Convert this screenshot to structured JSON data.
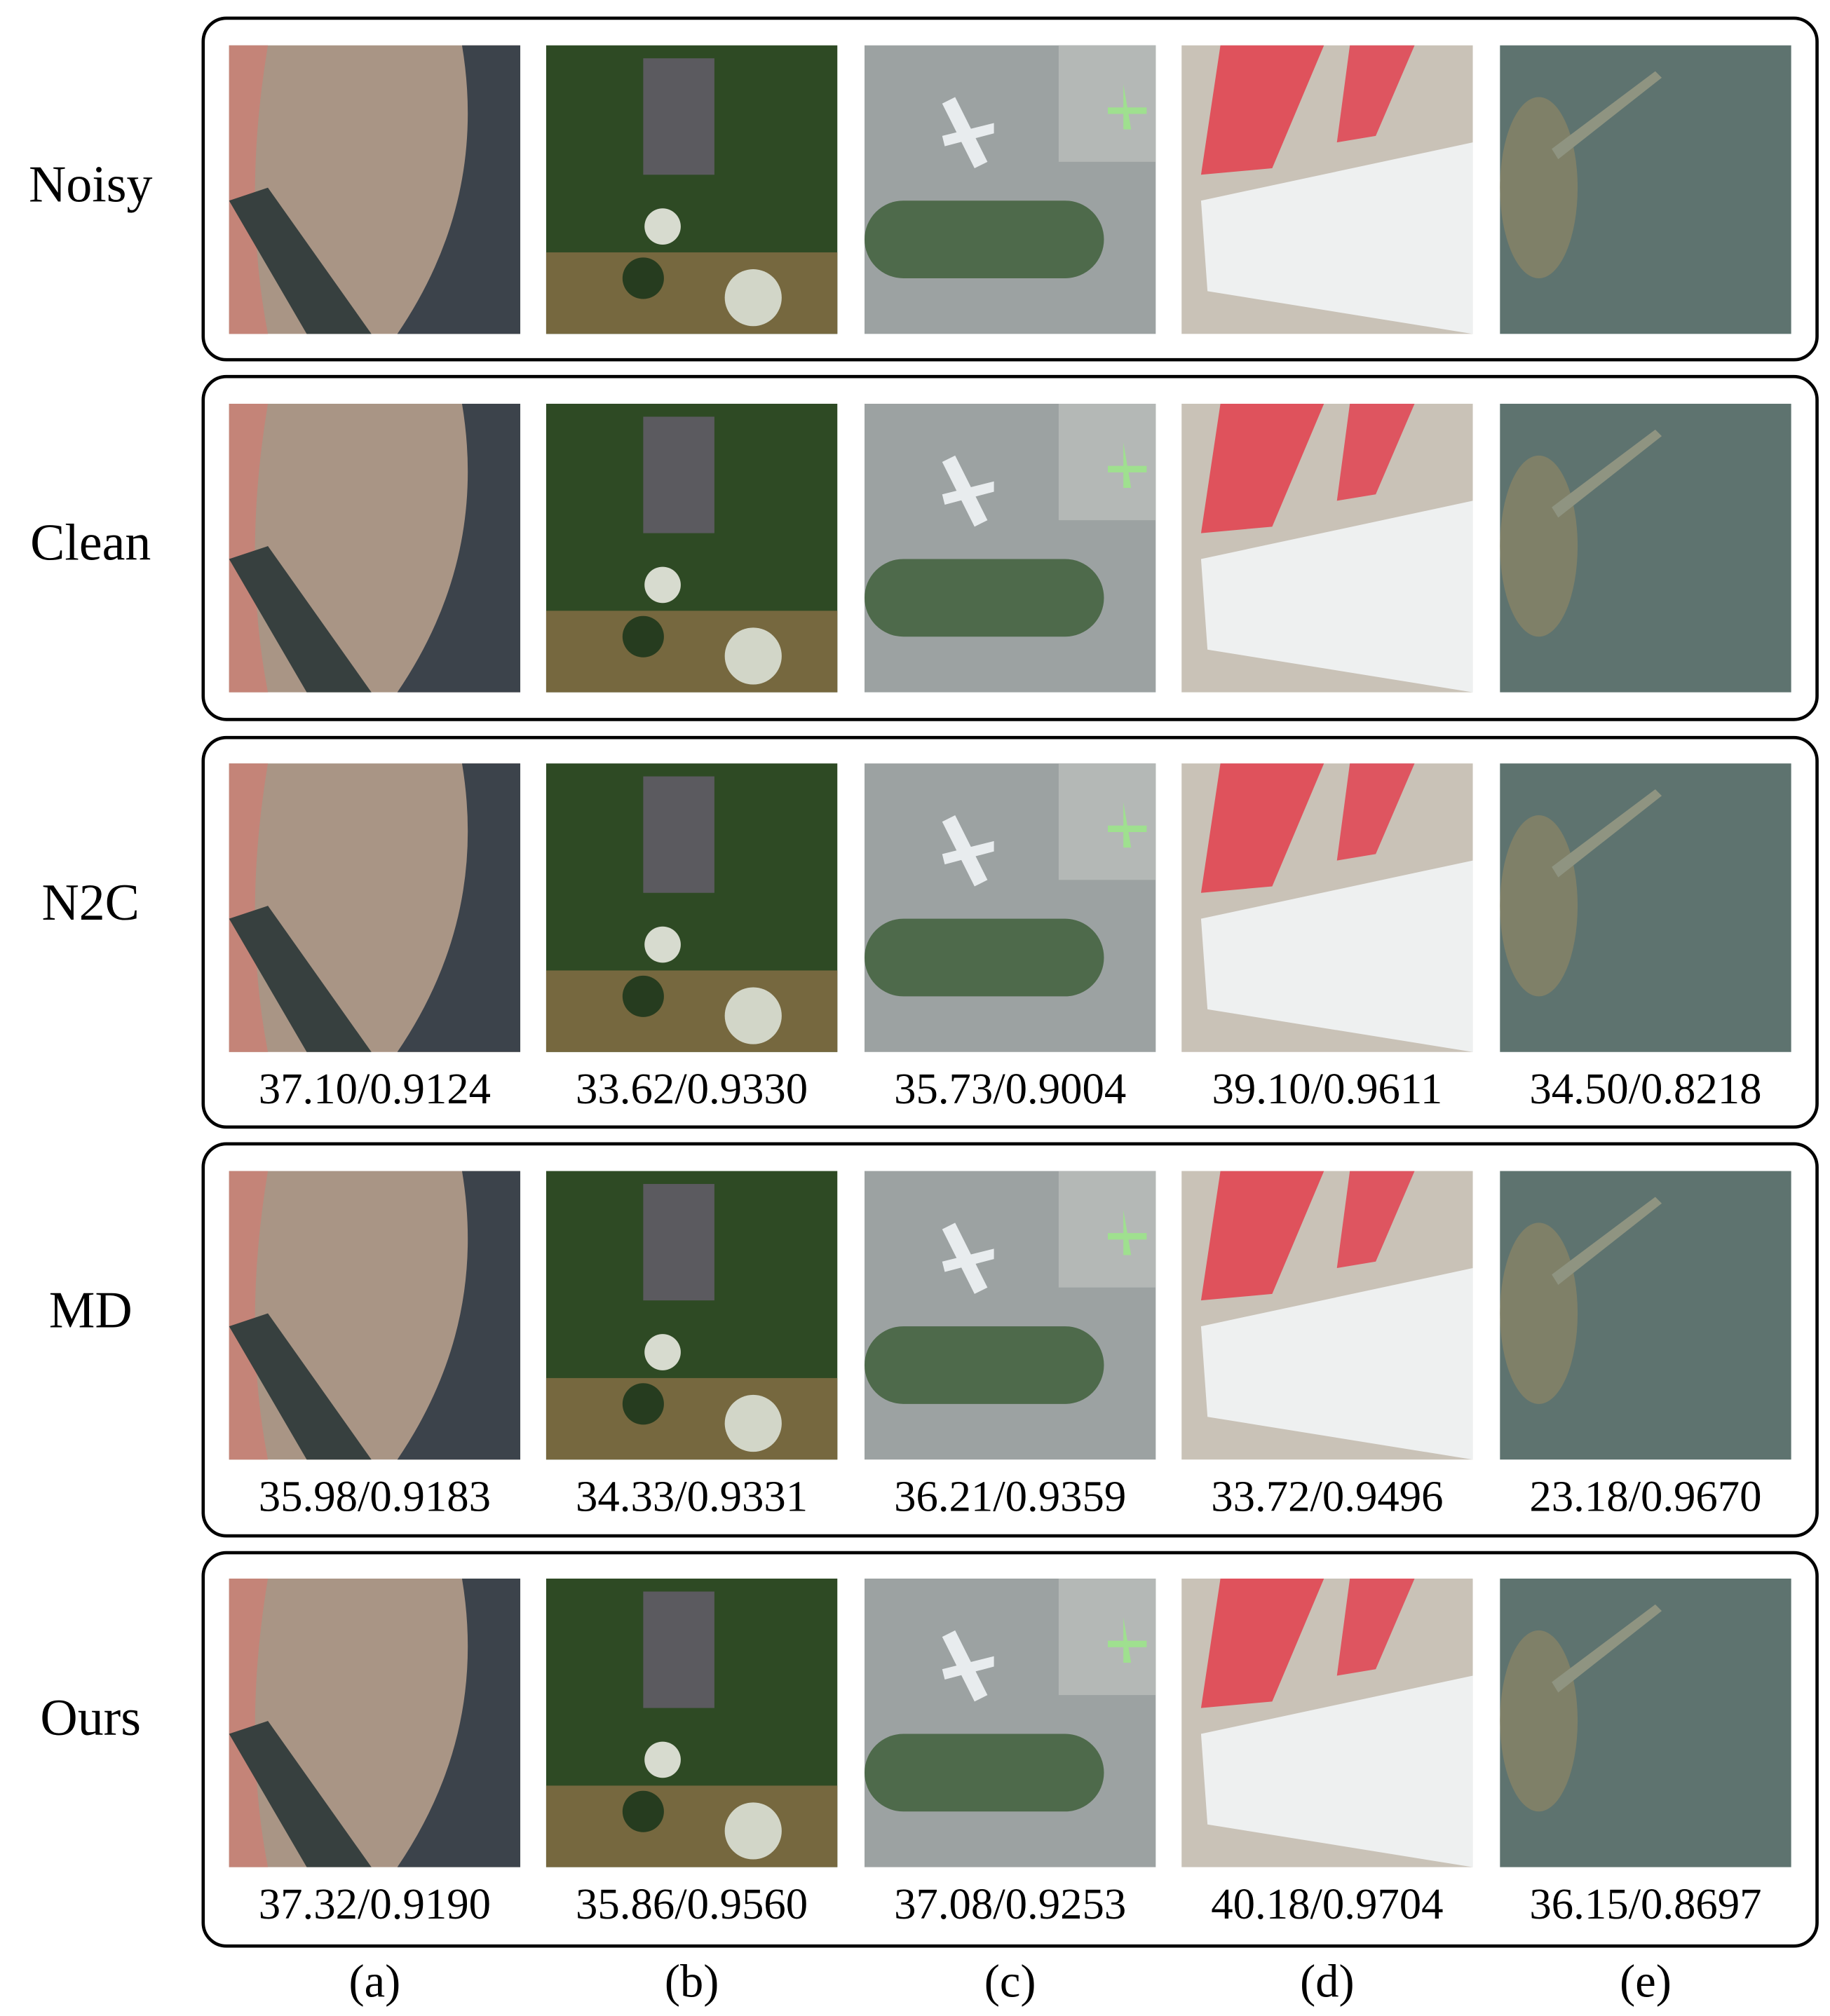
{
  "rows": [
    {
      "label": "Noisy"
    },
    {
      "label": "Clean"
    },
    {
      "label": "N2C",
      "metrics": [
        "37.10/0.9124",
        "33.62/0.9330",
        "35.73/0.9004",
        "39.10/0.9611",
        "34.50/0.8218"
      ]
    },
    {
      "label": "MD",
      "metrics": [
        "35.98/0.9183",
        "34.33/0.9331",
        "36.21/0.9359",
        "33.72/0.9496",
        "23.18/0.9670"
      ]
    },
    {
      "label": "Ours",
      "metrics": [
        "37.32/0.9190",
        "35.86/0.9560",
        "37.08/0.9253",
        "40.18/0.9704",
        "36.15/0.8697"
      ]
    }
  ],
  "columns": [
    "(a)",
    "(b)",
    "(c)",
    "(d)",
    "(e)"
  ]
}
